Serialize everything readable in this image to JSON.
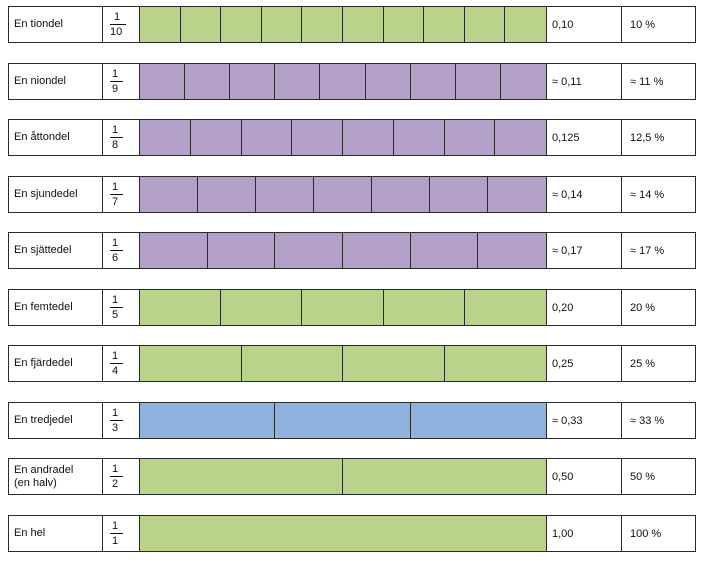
{
  "colors": {
    "green": "#b9d48a",
    "purple": "#b3a0c8",
    "blue": "#8db2dd",
    "border": "#2a2a2a"
  },
  "rows": [
    {
      "name": "En tiondel",
      "numerator": "1",
      "denominator": "10",
      "decimal": "0,10",
      "percent": "10 %",
      "parts": 10,
      "color": "green"
    },
    {
      "name": "En niondel",
      "numerator": "1",
      "denominator": "9",
      "decimal": "≈ 0,11",
      "percent": "≈ 11 %",
      "parts": 9,
      "color": "purple"
    },
    {
      "name": "En åttondel",
      "numerator": "1",
      "denominator": "8",
      "decimal": "0,125",
      "percent": "12,5 %",
      "parts": 8,
      "color": "purple"
    },
    {
      "name": "En sjundedel",
      "numerator": "1",
      "denominator": "7",
      "decimal": "≈ 0,14",
      "percent": "≈ 14 %",
      "parts": 7,
      "color": "purple"
    },
    {
      "name": "En sjättedel",
      "numerator": "1",
      "denominator": "6",
      "decimal": "≈ 0,17",
      "percent": "≈ 17 %",
      "parts": 6,
      "color": "purple"
    },
    {
      "name": "En femtedel",
      "numerator": "1",
      "denominator": "5",
      "decimal": "0,20",
      "percent": "20 %",
      "parts": 5,
      "color": "green"
    },
    {
      "name": "En fjärdedel",
      "numerator": "1",
      "denominator": "4",
      "decimal": "0,25",
      "percent": "25 %",
      "parts": 4,
      "color": "green"
    },
    {
      "name": "En tredjedel",
      "numerator": "1",
      "denominator": "3",
      "decimal": "≈ 0,33",
      "percent": "≈ 33 %",
      "parts": 3,
      "color": "blue"
    },
    {
      "name": "En andradel",
      "name_line2": "(en halv)",
      "numerator": "1",
      "denominator": "2",
      "decimal": "0,50",
      "percent": "50 %",
      "parts": 2,
      "color": "green"
    },
    {
      "name": "En hel",
      "numerator": "1",
      "denominator": "1",
      "decimal": "1,00",
      "percent": "100 %",
      "parts": 1,
      "color": "green"
    }
  ]
}
